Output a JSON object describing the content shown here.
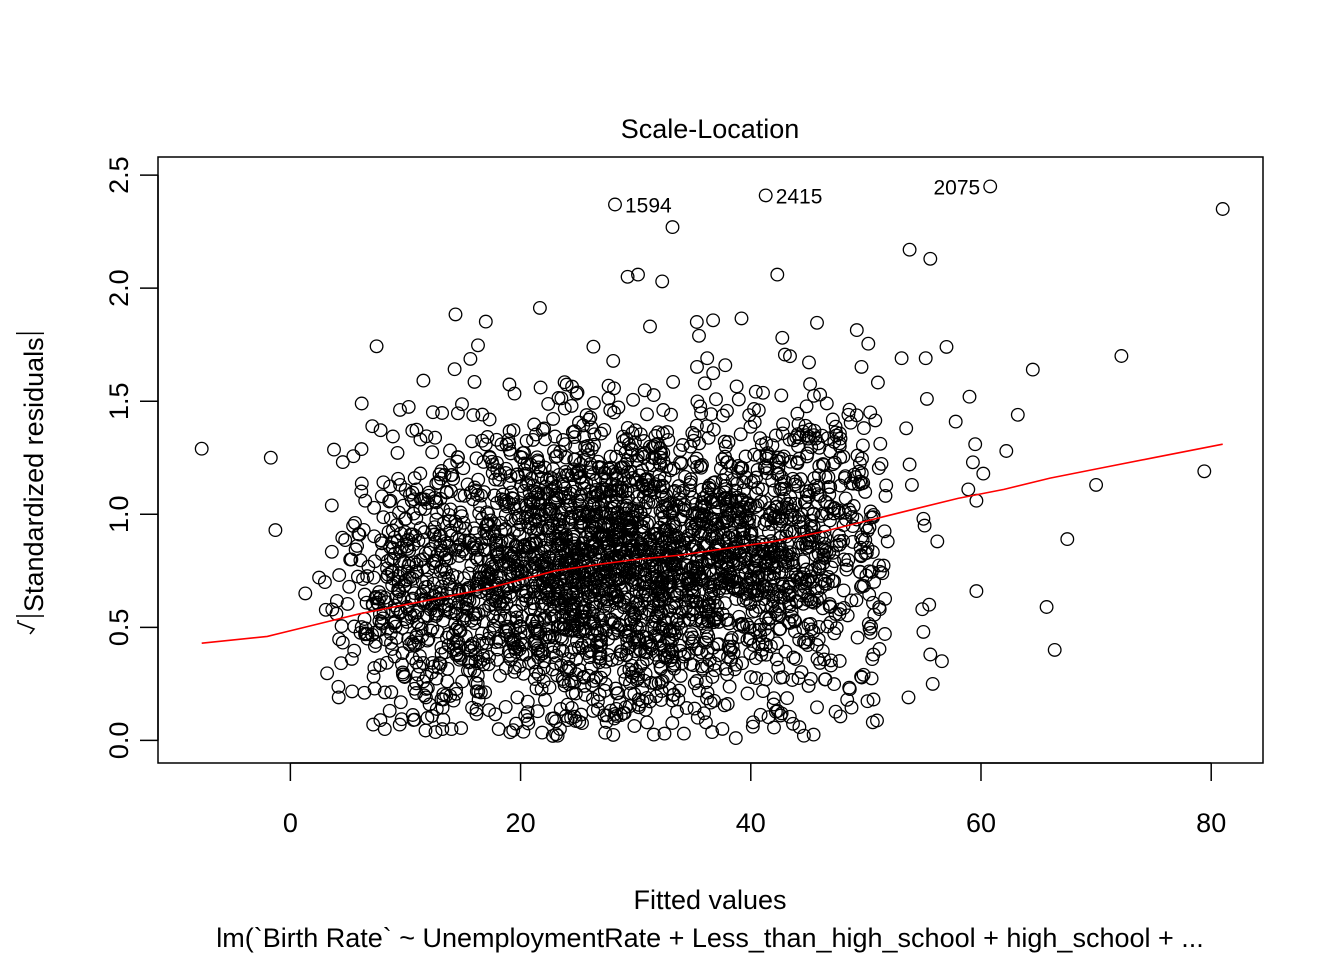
{
  "chart_data": {
    "type": "scatter",
    "title": "Scale-Location",
    "xlabel": "Fitted values",
    "ylabel": "√|Standardized residuals|",
    "ylabel_main": "Standardized residuals",
    "subtitle": "lm(`Birth Rate` ~ UnemploymentRate + Less_than_high_school + high_school +  ...",
    "xlim": [
      -11.5,
      84.5
    ],
    "ylim": [
      -0.1,
      2.58
    ],
    "x_ticks": [
      0,
      20,
      40,
      60,
      80
    ],
    "x_tick_labels": [
      "0",
      "20",
      "40",
      "60",
      "80"
    ],
    "y_ticks": [
      0.0,
      0.5,
      1.0,
      1.5,
      2.0,
      2.5
    ],
    "y_tick_labels": [
      "0.0",
      "0.5",
      "1.0",
      "1.5",
      "2.0",
      "2.5"
    ],
    "grid": false,
    "smooth_color": "#ff0000",
    "point_color": "#000000",
    "labeled_points": [
      {
        "label": "1594",
        "x": 28.2,
        "y": 2.37
      },
      {
        "label": "2415",
        "x": 41.3,
        "y": 2.41
      },
      {
        "label": "2075",
        "x": 60.8,
        "y": 2.45
      }
    ],
    "outlier_points": [
      [
        81.0,
        2.35
      ],
      [
        33.2,
        2.27
      ],
      [
        53.8,
        2.17
      ],
      [
        55.6,
        2.13
      ],
      [
        42.3,
        2.06
      ],
      [
        32.3,
        2.03
      ],
      [
        29.3,
        2.05
      ],
      [
        30.2,
        2.06
      ],
      [
        -7.7,
        1.29
      ],
      [
        -1.7,
        1.25
      ],
      [
        -1.3,
        0.93
      ],
      [
        1.3,
        0.65
      ],
      [
        6.2,
        1.49
      ],
      [
        6.5,
        1.06
      ],
      [
        8.7,
        1.06
      ],
      [
        11.3,
        1.33
      ],
      [
        10.8,
        1.16
      ],
      [
        72.2,
        1.7
      ],
      [
        64.5,
        1.64
      ],
      [
        59.0,
        1.52
      ],
      [
        63.2,
        1.44
      ],
      [
        57.8,
        1.41
      ],
      [
        62.2,
        1.28
      ],
      [
        59.5,
        1.31
      ],
      [
        59.3,
        1.23
      ],
      [
        60.2,
        1.18
      ],
      [
        58.9,
        1.11
      ],
      [
        59.6,
        1.06
      ],
      [
        70.0,
        1.13
      ],
      [
        79.4,
        1.19
      ],
      [
        67.5,
        0.89
      ],
      [
        65.7,
        0.59
      ],
      [
        66.4,
        0.4
      ],
      [
        59.6,
        0.66
      ],
      [
        57.0,
        1.74
      ],
      [
        55.2,
        1.69
      ],
      [
        55.3,
        1.51
      ],
      [
        53.1,
        1.69
      ],
      [
        53.5,
        1.38
      ],
      [
        53.8,
        1.22
      ],
      [
        54.0,
        1.13
      ],
      [
        55.1,
        0.95
      ],
      [
        56.2,
        0.88
      ],
      [
        55.0,
        0.98
      ],
      [
        55.5,
        0.6
      ],
      [
        54.9,
        0.58
      ],
      [
        55.0,
        0.48
      ],
      [
        56.6,
        0.35
      ],
      [
        55.6,
        0.38
      ],
      [
        53.7,
        0.19
      ],
      [
        55.8,
        0.25
      ],
      [
        50.6,
        0.08
      ],
      [
        49.8,
        0.29
      ],
      [
        51.2,
        0.58
      ],
      [
        3.0,
        0.7
      ],
      [
        4.0,
        0.56
      ],
      [
        4.2,
        0.19
      ],
      [
        2.5,
        0.72
      ],
      [
        5.2,
        0.8
      ],
      [
        5.8,
        0.86
      ],
      [
        6.0,
        0.91
      ],
      [
        6.7,
        0.45
      ],
      [
        7.3,
        0.32
      ],
      [
        7.2,
        0.07
      ],
      [
        8.2,
        0.05
      ],
      [
        9.5,
        0.07
      ],
      [
        10.7,
        0.09
      ],
      [
        13.2,
        0.05
      ],
      [
        14.0,
        0.05
      ],
      [
        38.7,
        0.01
      ],
      [
        32.5,
        0.03
      ],
      [
        22.8,
        0.02
      ],
      [
        27.5,
        0.11
      ],
      [
        36.1,
        0.08
      ],
      [
        40.2,
        0.08
      ],
      [
        18.1,
        0.05
      ],
      [
        20.6,
        0.09
      ],
      [
        42.6,
        0.11
      ]
    ],
    "smooth_curve": [
      [
        -7.7,
        0.43
      ],
      [
        -2.0,
        0.46
      ],
      [
        2.0,
        0.51
      ],
      [
        6.0,
        0.56
      ],
      [
        10.0,
        0.6
      ],
      [
        14.0,
        0.64
      ],
      [
        17.0,
        0.67
      ],
      [
        20.0,
        0.71
      ],
      [
        23.0,
        0.75
      ],
      [
        27.0,
        0.78
      ],
      [
        30.0,
        0.8
      ],
      [
        34.0,
        0.82
      ],
      [
        38.0,
        0.85
      ],
      [
        42.0,
        0.88
      ],
      [
        46.0,
        0.92
      ],
      [
        50.0,
        0.97
      ],
      [
        54.0,
        1.02
      ],
      [
        58.0,
        1.07
      ],
      [
        62.0,
        1.11
      ],
      [
        66.0,
        1.16
      ],
      [
        70.0,
        1.2
      ],
      [
        75.0,
        1.25
      ],
      [
        81.0,
        1.31
      ]
    ],
    "cloud": [
      {
        "cx": 26.0,
        "cy": 0.78,
        "sx": 9.0,
        "sy": 0.33,
        "n": 2200
      },
      {
        "cx": 40.0,
        "cy": 0.85,
        "sx": 6.5,
        "sy": 0.33,
        "n": 650
      },
      {
        "cx": 12.0,
        "cy": 0.6,
        "sx": 4.0,
        "sy": 0.26,
        "n": 260
      },
      {
        "cx": 46.5,
        "cy": 0.95,
        "sx": 4.0,
        "sy": 0.38,
        "n": 180
      }
    ]
  }
}
